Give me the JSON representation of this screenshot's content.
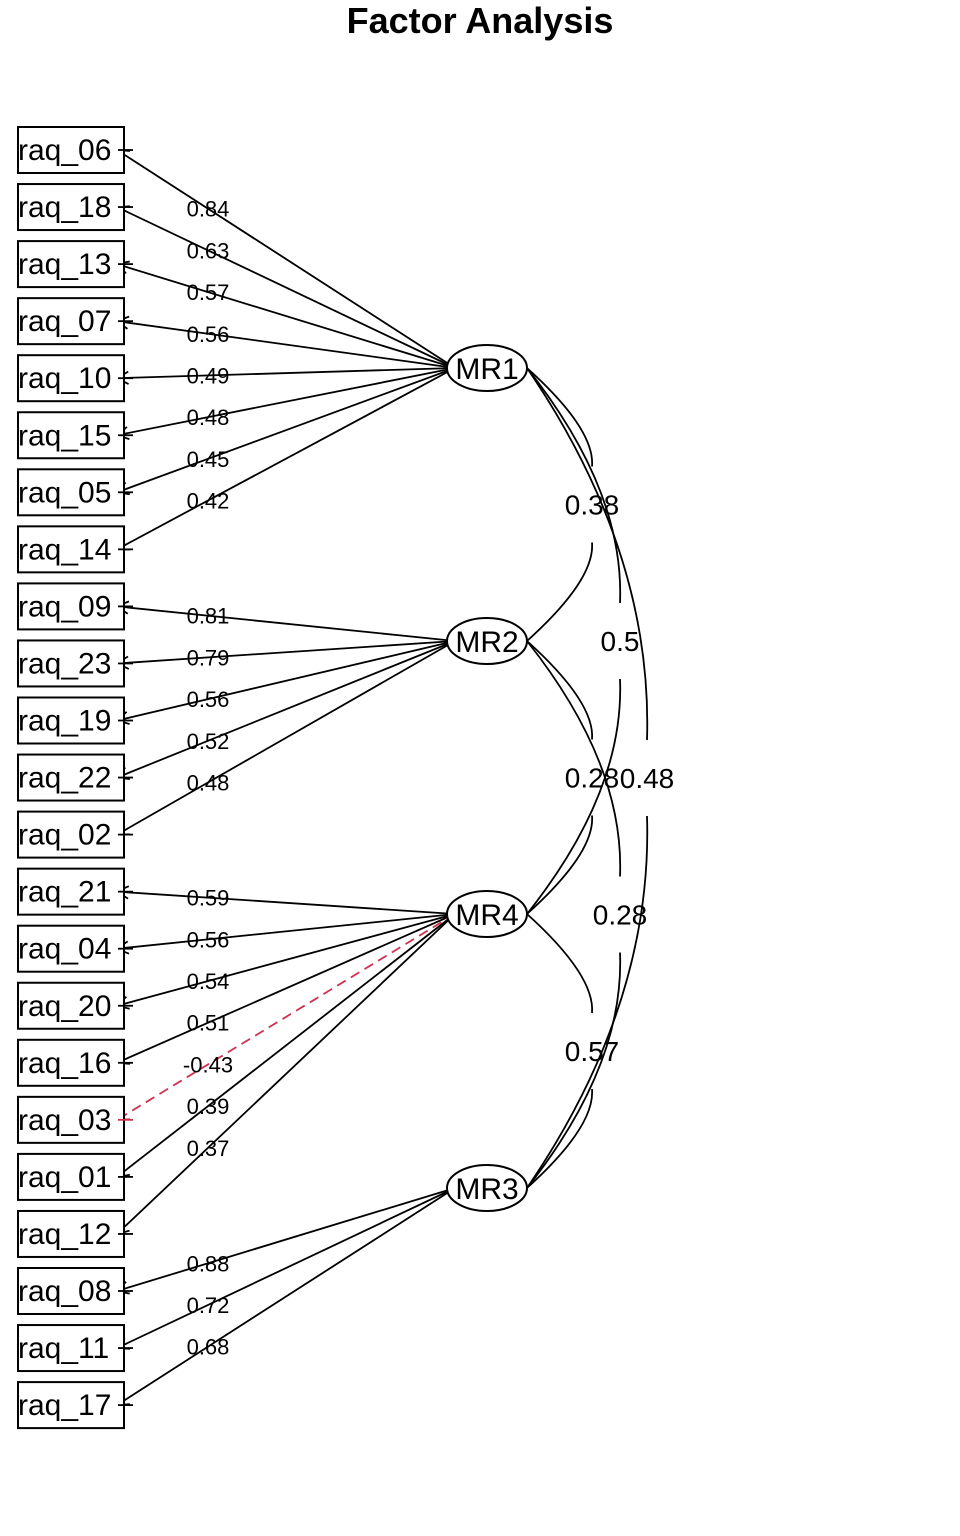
{
  "title": "Factor Analysis",
  "factors": [
    {
      "id": "MR1",
      "label": "MR1"
    },
    {
      "id": "MR2",
      "label": "MR2"
    },
    {
      "id": "MR4",
      "label": "MR4"
    },
    {
      "id": "MR3",
      "label": "MR3"
    }
  ],
  "variables": [
    {
      "label": "raq_06",
      "factor": "MR1",
      "loading": "0.84"
    },
    {
      "label": "raq_18",
      "factor": "MR1",
      "loading": "0.63"
    },
    {
      "label": "raq_13",
      "factor": "MR1",
      "loading": "0.57"
    },
    {
      "label": "raq_07",
      "factor": "MR1",
      "loading": "0.56"
    },
    {
      "label": "raq_10",
      "factor": "MR1",
      "loading": "0.49"
    },
    {
      "label": "raq_15",
      "factor": "MR1",
      "loading": "0.48"
    },
    {
      "label": "raq_05",
      "factor": "MR1",
      "loading": "0.45"
    },
    {
      "label": "raq_14",
      "factor": "MR1",
      "loading": "0.42"
    },
    {
      "label": "raq_09",
      "factor": "MR2",
      "loading": "0.81"
    },
    {
      "label": "raq_23",
      "factor": "MR2",
      "loading": "0.79"
    },
    {
      "label": "raq_19",
      "factor": "MR2",
      "loading": "0.56"
    },
    {
      "label": "raq_22",
      "factor": "MR2",
      "loading": "0.52"
    },
    {
      "label": "raq_02",
      "factor": "MR2",
      "loading": "0.48"
    },
    {
      "label": "raq_21",
      "factor": "MR4",
      "loading": "0.59"
    },
    {
      "label": "raq_04",
      "factor": "MR4",
      "loading": "0.56"
    },
    {
      "label": "raq_20",
      "factor": "MR4",
      "loading": "0.54"
    },
    {
      "label": "raq_16",
      "factor": "MR4",
      "loading": "0.51"
    },
    {
      "label": "raq_03",
      "factor": "MR4",
      "loading": "-0.43"
    },
    {
      "label": "raq_01",
      "factor": "MR4",
      "loading": "0.39"
    },
    {
      "label": "raq_12",
      "factor": "MR4",
      "loading": "0.37"
    },
    {
      "label": "raq_08",
      "factor": "MR3",
      "loading": "0.88"
    },
    {
      "label": "raq_11",
      "factor": "MR3",
      "loading": "0.72"
    },
    {
      "label": "raq_17",
      "factor": "MR3",
      "loading": "0.68"
    }
  ],
  "correlations": [
    {
      "from": "MR1",
      "to": "MR2",
      "value": "0.38"
    },
    {
      "from": "MR1",
      "to": "MR4",
      "value": "0.5"
    },
    {
      "from": "MR1",
      "to": "MR3",
      "value": "0.48"
    },
    {
      "from": "MR2",
      "to": "MR4",
      "value": "0.28"
    },
    {
      "from": "MR2",
      "to": "MR3",
      "value": "0.28"
    },
    {
      "from": "MR4",
      "to": "MR3",
      "value": "0.57"
    }
  ],
  "colors": {
    "positive": "#000000",
    "negative": "#d03050"
  }
}
